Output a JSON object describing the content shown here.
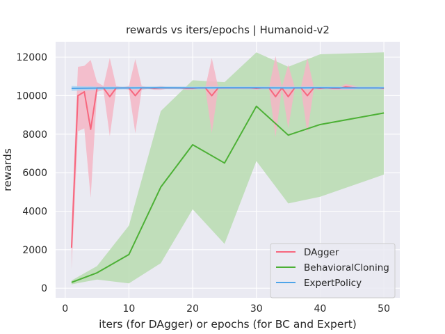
{
  "chart_data": {
    "type": "line",
    "title": "rewards vs iters/epochs | Humanoid-v2",
    "xlabel": "iters (for DAgger) or epochs (for BC and Expert)",
    "ylabel": "rewards",
    "xlim": [
      -1.5,
      52.5
    ],
    "ylim": [
      -500,
      12800
    ],
    "xticks": [
      0,
      10,
      20,
      30,
      40,
      50
    ],
    "yticks": [
      0,
      2000,
      4000,
      6000,
      8000,
      10000,
      12000
    ],
    "grid": true,
    "legend_position": "bottom-right",
    "background_color": "#eaeaf2",
    "series": [
      {
        "name": "DAgger",
        "color": "#f7677e",
        "band_color": "#f5b6c6",
        "x": [
          1,
          2,
          3,
          4,
          5,
          6,
          7,
          8,
          9,
          10,
          11,
          12,
          13,
          14,
          15,
          16,
          17,
          18,
          19,
          20,
          21,
          22,
          23,
          24,
          25,
          26,
          27,
          28,
          29,
          30,
          31,
          32,
          33,
          34,
          35,
          36,
          37,
          38,
          39,
          40,
          41,
          42,
          43,
          44,
          45,
          46,
          47,
          48,
          49,
          50
        ],
        "y": [
          2100,
          10000,
          10200,
          8250,
          10400,
          10400,
          9950,
          10400,
          10400,
          10400,
          10000,
          10400,
          10400,
          10380,
          10400,
          10400,
          10400,
          10400,
          10380,
          10380,
          10400,
          10400,
          10000,
          10400,
          10400,
          10400,
          10400,
          10400,
          10400,
          10380,
          10400,
          10400,
          9950,
          10400,
          9950,
          10400,
          10400,
          10000,
          10400,
          10380,
          10400,
          10380,
          10380,
          10450,
          10420,
          10400,
          10400,
          10400,
          10400,
          10380
        ],
        "lower": [
          1000,
          8150,
          8300,
          4700,
          10200,
          10300,
          7900,
          10300,
          10350,
          10300,
          8050,
          10300,
          10350,
          10300,
          10300,
          10350,
          10350,
          10350,
          10300,
          10300,
          10350,
          10350,
          8050,
          10350,
          10350,
          10350,
          10350,
          10350,
          10350,
          10300,
          10350,
          10350,
          7850,
          10350,
          8300,
          10350,
          10350,
          8050,
          10350,
          10300,
          10350,
          10300,
          10300,
          10300,
          10300,
          10350,
          10350,
          10350,
          10350,
          10300
        ],
        "upper": [
          3200,
          11500,
          11550,
          11850,
          10700,
          10500,
          11950,
          10500,
          10450,
          10500,
          11900,
          10500,
          10450,
          10450,
          10500,
          10450,
          10450,
          10450,
          10450,
          10450,
          10450,
          10450,
          11950,
          10450,
          10450,
          10450,
          10450,
          10450,
          10450,
          10450,
          10450,
          10450,
          12050,
          10450,
          11600,
          10450,
          10450,
          11950,
          10450,
          10450,
          10450,
          10450,
          10450,
          10600,
          10550,
          10450,
          10450,
          10450,
          10450,
          10450
        ]
      },
      {
        "name": "BehavioralCloning",
        "color": "#4cb035",
        "band_color": "#b8dcb0",
        "x": [
          1,
          5,
          10,
          15,
          20,
          25,
          30,
          35,
          40,
          50
        ],
        "y": [
          300,
          800,
          1750,
          5250,
          7450,
          6500,
          9450,
          7950,
          8500,
          9100
        ],
        "lower": [
          200,
          450,
          250,
          1300,
          4100,
          2300,
          6600,
          4400,
          4750,
          5900
        ],
        "upper": [
          400,
          1150,
          3250,
          9200,
          10800,
          10700,
          12250,
          11500,
          12150,
          12250
        ]
      },
      {
        "name": "ExpertPolicy",
        "color": "#4ea4e9",
        "band_color": "#a8d2f2",
        "x": [
          1,
          5,
          10,
          15,
          20,
          25,
          30,
          35,
          40,
          45,
          50
        ],
        "y": [
          10380,
          10390,
          10400,
          10410,
          10400,
          10410,
          10410,
          10400,
          10410,
          10400,
          10400
        ],
        "lower": [
          10250,
          10300,
          10330,
          10340,
          10330,
          10340,
          10330,
          10330,
          10340,
          10330,
          10330
        ],
        "upper": [
          10500,
          10470,
          10470,
          10480,
          10470,
          10480,
          10480,
          10470,
          10480,
          10470,
          10470
        ]
      }
    ]
  }
}
